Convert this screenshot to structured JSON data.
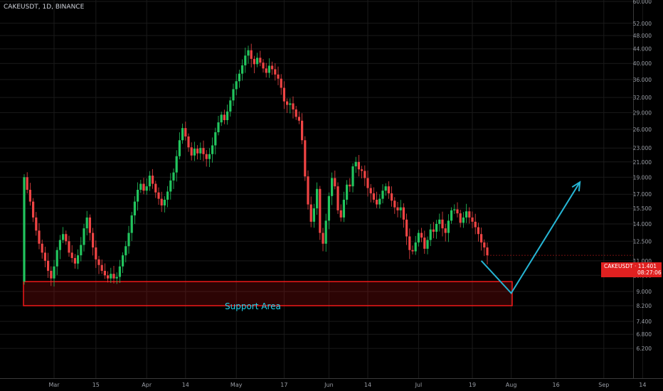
{
  "header": {
    "symbol_title": "CAKEUSDT, 1D, BINANCE"
  },
  "price_tag": {
    "symbol": "CAKEUSDT",
    "price": "11.401",
    "countdown": "08:27:06",
    "color": "#e02020"
  },
  "annotation": {
    "label": "Support Area",
    "color": "#22d3ee",
    "box_color": "#ff1a1a",
    "zone_low": 8.2,
    "zone_high": 9.6
  },
  "projection": {
    "color": "#26b5d4",
    "points": [
      {
        "t": "2021-07-22",
        "y": 11.0
      },
      {
        "t": "2021-08-01",
        "y": 8.9
      },
      {
        "t": "2021-08-24",
        "y": 18.4
      }
    ]
  },
  "chart_data": {
    "type": "candlestick",
    "y_scale": "log",
    "ylim": [
      5.6,
      60.0
    ],
    "colors": {
      "up": "#22c55e",
      "down": "#ef4444",
      "grid": "#1a1a1a",
      "text": "#9a9ea6"
    },
    "y_ticks": [
      6.2,
      6.8,
      7.4,
      8.2,
      9.0,
      10.0,
      11.0,
      12.5,
      14.0,
      15.5,
      17.0,
      19.0,
      21.0,
      23.0,
      26.0,
      29.0,
      32.0,
      36.0,
      40.0,
      44.0,
      48.0,
      52.0,
      60.0
    ],
    "y_tick_labels": [
      "6.200",
      "6.800",
      "7.400",
      "8.200",
      "9.000",
      "10.000",
      "11.000",
      "12.500",
      "14.000",
      "15.500",
      "17.000",
      "19.000",
      "21.000",
      "23.000",
      "26.000",
      "29.000",
      "32.000",
      "36.000",
      "40.000",
      "44.000",
      "48.000",
      "52.000",
      "60.000"
    ],
    "x_ticks": [
      {
        "label": "Mar",
        "date": "2021-03-01"
      },
      {
        "label": "15",
        "date": "2021-03-15"
      },
      {
        "label": "Apr",
        "date": "2021-04-01"
      },
      {
        "label": "14",
        "date": "2021-04-14"
      },
      {
        "label": "May",
        "date": "2021-05-01"
      },
      {
        "label": "17",
        "date": "2021-05-17"
      },
      {
        "label": "Jun",
        "date": "2021-06-01"
      },
      {
        "label": "14",
        "date": "2021-06-14"
      },
      {
        "label": "Jul",
        "date": "2021-07-01"
      },
      {
        "label": "19",
        "date": "2021-07-19"
      },
      {
        "label": "Aug",
        "date": "2021-08-01"
      },
      {
        "label": "16",
        "date": "2021-08-16"
      },
      {
        "label": "Sep",
        "date": "2021-09-01"
      },
      {
        "label": "14",
        "date": "2021-09-14"
      }
    ],
    "first_candle_date": "2021-02-19",
    "closes": [
      19.0,
      17.5,
      16.2,
      14.6,
      13.4,
      12.3,
      11.6,
      11.0,
      10.3,
      9.8,
      10.6,
      11.8,
      12.6,
      13.1,
      12.5,
      11.6,
      11.2,
      10.8,
      11.4,
      12.2,
      13.6,
      14.6,
      13.2,
      12.0,
      11.1,
      10.7,
      10.3,
      10.0,
      9.8,
      10.1,
      9.8,
      9.9,
      10.6,
      11.4,
      12.1,
      13.2,
      14.8,
      16.2,
      17.5,
      18.2,
      17.4,
      17.9,
      19.2,
      18.2,
      17.2,
      16.5,
      15.8,
      16.4,
      17.3,
      18.6,
      19.6,
      21.8,
      24.2,
      26.2,
      24.8,
      23.1,
      21.9,
      22.9,
      22.2,
      23.0,
      22.1,
      21.4,
      22.1,
      23.4,
      25.5,
      27.2,
      28.6,
      27.6,
      29.2,
      31.4,
      33.8,
      35.6,
      37.4,
      39.5,
      42.1,
      43.6,
      41.2,
      39.8,
      41.5,
      40.2,
      38.7,
      37.6,
      39.4,
      38.5,
      37.2,
      36.2,
      34.1,
      31.2,
      30.5,
      30.8,
      29.6,
      28.2,
      27.5,
      24.2,
      19.1,
      15.9,
      14.2,
      15.5,
      17.6,
      13.2,
      12.3,
      14.3,
      16.8,
      18.9,
      17.9,
      15.3,
      14.6,
      16.4,
      18.1,
      17.9,
      20.4,
      21.0,
      20.0,
      19.8,
      18.9,
      17.7,
      17.1,
      16.4,
      15.9,
      16.5,
      17.4,
      17.9,
      17.1,
      16.3,
      15.6,
      15.3,
      15.6,
      14.4,
      12.9,
      11.8,
      11.7,
      12.4,
      13.2,
      12.8,
      11.9,
      12.6,
      13.5,
      13.3,
      14.0,
      14.4,
      13.6,
      13.2,
      14.3,
      15.3,
      15.4,
      15.0,
      14.1,
      14.6,
      15.2,
      14.6,
      14.2,
      13.7,
      13.1,
      12.4,
      12.0,
      11.4
    ],
    "last": 11.401
  }
}
